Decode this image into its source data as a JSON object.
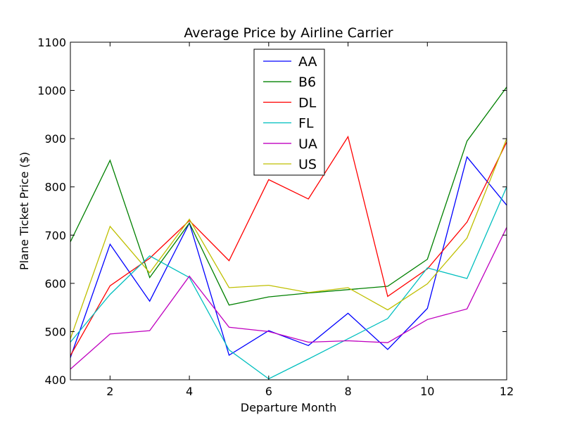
{
  "chart_data": {
    "type": "line",
    "title": "Average Price by Airline Carrier",
    "xlabel": "Departure Month",
    "ylabel": "Plane Ticket Price ($)",
    "xlim": [
      1,
      12
    ],
    "ylim": [
      400,
      1100
    ],
    "xticks": [
      2,
      4,
      6,
      8,
      10,
      12
    ],
    "yticks": [
      400,
      500,
      600,
      700,
      800,
      900,
      1000,
      1100
    ],
    "grid": false,
    "legend_position": "top-center",
    "x": [
      1,
      2,
      3,
      4,
      5,
      6,
      7,
      8,
      9,
      10,
      11,
      12
    ],
    "series": [
      {
        "name": "AA",
        "color": "#0000ff",
        "values": [
          446,
          681,
          563,
          725,
          451,
          502,
          471,
          538,
          463,
          548,
          862,
          762
        ]
      },
      {
        "name": "B6",
        "color": "#008000",
        "values": [
          686,
          855,
          612,
          725,
          555,
          572,
          580,
          587,
          594,
          650,
          895,
          1007
        ]
      },
      {
        "name": "DL",
        "color": "#ff0000",
        "values": [
          450,
          595,
          652,
          730,
          647,
          815,
          775,
          904,
          573,
          630,
          727,
          893
        ]
      },
      {
        "name": "FL",
        "color": "#00bfbf",
        "values": [
          478,
          577,
          657,
          612,
          462,
          402,
          443,
          485,
          527,
          632,
          610,
          800
        ]
      },
      {
        "name": "UA",
        "color": "#bf00bf",
        "values": [
          422,
          495,
          502,
          615,
          509,
          500,
          478,
          481,
          477,
          525,
          547,
          716
        ]
      },
      {
        "name": "US",
        "color": "#bfbf00",
        "values": [
          485,
          718,
          622,
          733,
          591,
          596,
          581,
          591,
          545,
          599,
          694,
          900
        ]
      }
    ]
  }
}
